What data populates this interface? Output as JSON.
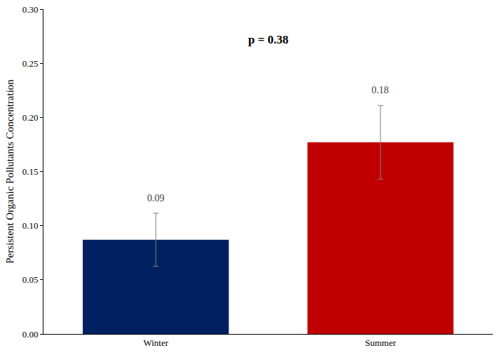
{
  "chart_data": {
    "type": "bar",
    "categories": [
      "Winter",
      "Summer"
    ],
    "values": [
      0.087,
      0.177
    ],
    "value_labels": [
      "0.09",
      "0.18"
    ],
    "errors": [
      0.0245,
      0.034
    ],
    "colors": [
      "#002060",
      "#c00000"
    ],
    "y_label": "Persistent Organic Pollutants Concentration",
    "annotations": [
      "p = 0.38"
    ],
    "ylim": [
      0,
      0.3
    ],
    "yticks": [
      {
        "value": 0,
        "label": "0.00"
      },
      {
        "value": 0.05,
        "label": "0.05"
      },
      {
        "value": 0.1,
        "label": "0.10"
      },
      {
        "value": 0.15,
        "label": "0.15"
      },
      {
        "value": 0.2,
        "label": "0.20"
      },
      {
        "value": 0.25,
        "label": "0.25"
      },
      {
        "value": 0.3,
        "label": "0.30"
      }
    ],
    "grid": false,
    "data_labels": true
  }
}
